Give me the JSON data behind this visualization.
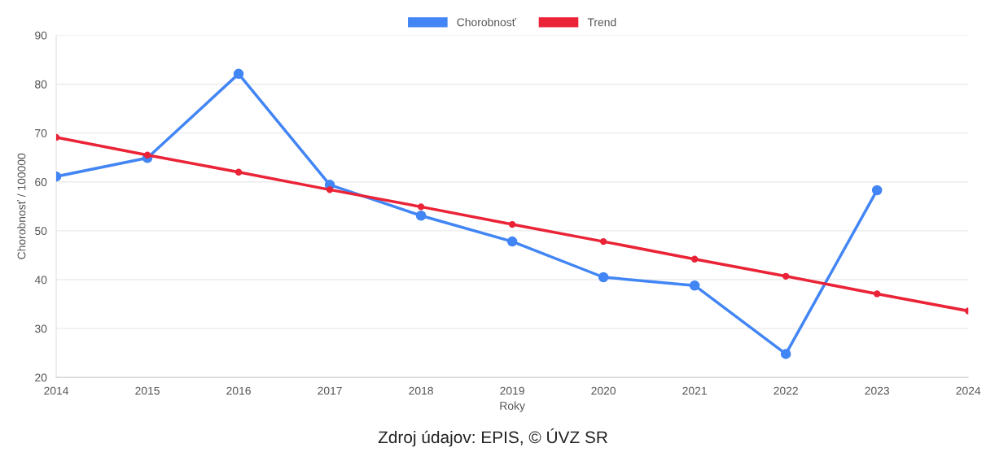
{
  "chart_data": {
    "type": "line",
    "xlabel": "Roky",
    "ylabel": "Chorobnosť / 100000",
    "x": [
      2014,
      2015,
      2016,
      2017,
      2018,
      2019,
      2020,
      2021,
      2022,
      2023,
      2024
    ],
    "series": [
      {
        "name": "Chorobnosť",
        "color": "#4285f4",
        "values": [
          61.1,
          64.9,
          82.1,
          59.4,
          53.1,
          47.8,
          40.5,
          38.8,
          24.8,
          58.3,
          null
        ]
      },
      {
        "name": "Trend",
        "color": "#ea2337",
        "values": [
          69.1,
          65.5,
          62.0,
          58.4,
          54.9,
          51.3,
          47.8,
          44.2,
          40.7,
          37.1,
          33.6
        ]
      }
    ],
    "xlim": [
      2014,
      2024
    ],
    "xticks": [
      2014,
      2015,
      2016,
      2017,
      2018,
      2019,
      2020,
      2021,
      2022,
      2023,
      2024
    ],
    "ylim": [
      20,
      90
    ],
    "yticks": [
      20,
      30,
      40,
      50,
      60,
      70,
      80,
      90
    ],
    "grid": "y",
    "legend": "top",
    "marker": "circle",
    "line_style": "solid",
    "annotations": [
      "Zdroj údajov: EPIS, © ÚVZ SR"
    ]
  }
}
